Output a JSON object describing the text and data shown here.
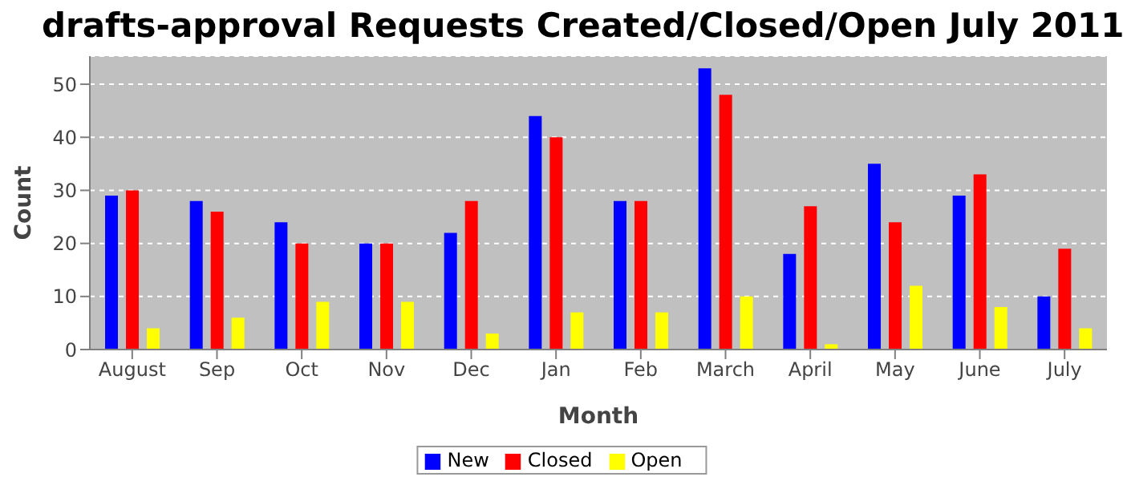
{
  "chart_data": {
    "type": "bar",
    "title": "drafts-approval Requests Created/Closed/Open July 2011",
    "xlabel": "Month",
    "ylabel": "Count",
    "categories": [
      "August",
      "Sep",
      "Oct",
      "Nov",
      "Dec",
      "Jan",
      "Feb",
      "March",
      "April",
      "May",
      "June",
      "July"
    ],
    "series": [
      {
        "name": "New",
        "color": "#0000ff",
        "values": [
          29,
          28,
          24,
          20,
          22,
          44,
          28,
          53,
          18,
          35,
          29,
          10
        ]
      },
      {
        "name": "Closed",
        "color": "#ff0000",
        "values": [
          30,
          26,
          20,
          20,
          28,
          40,
          28,
          48,
          27,
          24,
          33,
          19
        ]
      },
      {
        "name": "Open",
        "color": "#ffff00",
        "values": [
          4,
          6,
          9,
          9,
          3,
          7,
          7,
          10,
          1,
          12,
          8,
          4
        ]
      }
    ],
    "ylim": [
      0,
      55.3
    ],
    "yticks": [
      0,
      10,
      20,
      30,
      40,
      50
    ],
    "grid": "y",
    "legend": "bottom"
  }
}
